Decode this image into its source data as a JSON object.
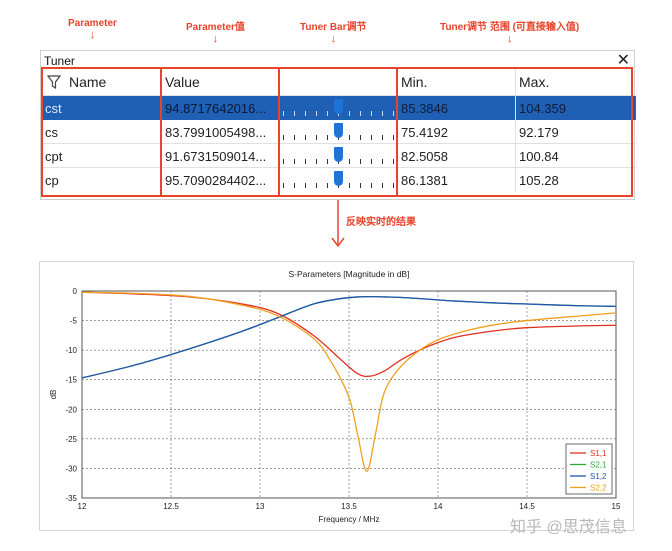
{
  "annotations": {
    "parameter": "Parameter",
    "parameter_value": "Parameter值",
    "tuner_bar": "Tuner Bar调节",
    "tuner_range": "Tuner调节 范围 (可直接输入值)",
    "realtime_result": "反映实时的结果",
    "arrow_down": "↓"
  },
  "tuner": {
    "title": "Tuner",
    "close_glyph": "✕",
    "columns": {
      "name": "Name",
      "value": "Value",
      "min": "Min.",
      "max": "Max."
    },
    "rows": [
      {
        "name": "cst",
        "value": "94.8717642016...",
        "min": "85.3846",
        "max": "104.359",
        "position": 0.5,
        "selected": true
      },
      {
        "name": "cs",
        "value": "83.7991005498...",
        "min": "75.4192",
        "max": "92.179",
        "position": 0.5,
        "selected": false
      },
      {
        "name": "cpt",
        "value": "91.6731509014...",
        "min": "82.5058",
        "max": "100.84",
        "position": 0.5,
        "selected": false
      },
      {
        "name": "cp",
        "value": "95.7090284402...",
        "min": "86.1381",
        "max": "105.28",
        "position": 0.5,
        "selected": false
      }
    ],
    "icons": {
      "filter": "filter-icon",
      "close": "close-icon"
    }
  },
  "chart_data": {
    "type": "line",
    "title": "S-Parameters [Magnitude in dB]",
    "xlabel": "Frequency / MHz",
    "ylabel": "dB",
    "xlim": [
      12,
      15
    ],
    "ylim": [
      -35,
      0
    ],
    "xticks": [
      12,
      12.5,
      13,
      13.5,
      14,
      14.5,
      15
    ],
    "yticks": [
      0,
      -5,
      -10,
      -15,
      -20,
      -25,
      -30,
      -35
    ],
    "grid": true,
    "legend_position": "bottom-right",
    "series": [
      {
        "name": "S1,1",
        "color": "#e03020",
        "x": [
          12,
          12.3,
          12.6,
          12.9,
          13.1,
          13.3,
          13.45,
          13.55,
          13.62,
          13.7,
          13.8,
          13.95,
          14.1,
          14.3,
          14.5,
          14.8,
          15
        ],
        "y": [
          -0.2,
          -0.5,
          -1.0,
          -2.2,
          -3.8,
          -7.5,
          -11.5,
          -14.0,
          -14.4,
          -13.5,
          -11.5,
          -9.3,
          -7.8,
          -6.8,
          -6.2,
          -5.9,
          -5.8
        ]
      },
      {
        "name": "S2,1",
        "color": "#2ea82e",
        "x": [
          12,
          12.3,
          12.6,
          12.9,
          13.1,
          13.3,
          13.45,
          13.55,
          13.62,
          13.7,
          13.8,
          13.95,
          14.1,
          14.3,
          14.5,
          14.8,
          15
        ],
        "y": [
          -14.7,
          -12.5,
          -9.8,
          -6.8,
          -4.5,
          -2.2,
          -1.3,
          -1.0,
          -0.95,
          -1.0,
          -1.1,
          -1.4,
          -1.7,
          -2.0,
          -2.2,
          -2.5,
          -2.6
        ]
      },
      {
        "name": "S1,2",
        "color": "#2255b0",
        "x": [
          12,
          12.3,
          12.6,
          12.9,
          13.1,
          13.3,
          13.45,
          13.55,
          13.62,
          13.7,
          13.8,
          13.95,
          14.1,
          14.3,
          14.5,
          14.8,
          15
        ],
        "y": [
          -14.7,
          -12.5,
          -9.8,
          -6.8,
          -4.5,
          -2.2,
          -1.3,
          -1.0,
          -0.95,
          -1.0,
          -1.1,
          -1.4,
          -1.7,
          -2.0,
          -2.2,
          -2.5,
          -2.6
        ]
      },
      {
        "name": "S2,2",
        "color": "#f0a020",
        "x": [
          12,
          12.3,
          12.6,
          12.9,
          13.1,
          13.3,
          13.4,
          13.5,
          13.55,
          13.6,
          13.65,
          13.7,
          13.8,
          13.95,
          14.1,
          14.3,
          14.5,
          14.8,
          15
        ],
        "y": [
          -0.2,
          -0.4,
          -0.9,
          -2.4,
          -4.2,
          -8.0,
          -12.0,
          -18.0,
          -24.5,
          -30.5,
          -24.0,
          -17.0,
          -12.5,
          -9.0,
          -7.2,
          -5.8,
          -5.0,
          -4.2,
          -3.7
        ]
      }
    ]
  },
  "watermark": "知乎 @思茂信息"
}
